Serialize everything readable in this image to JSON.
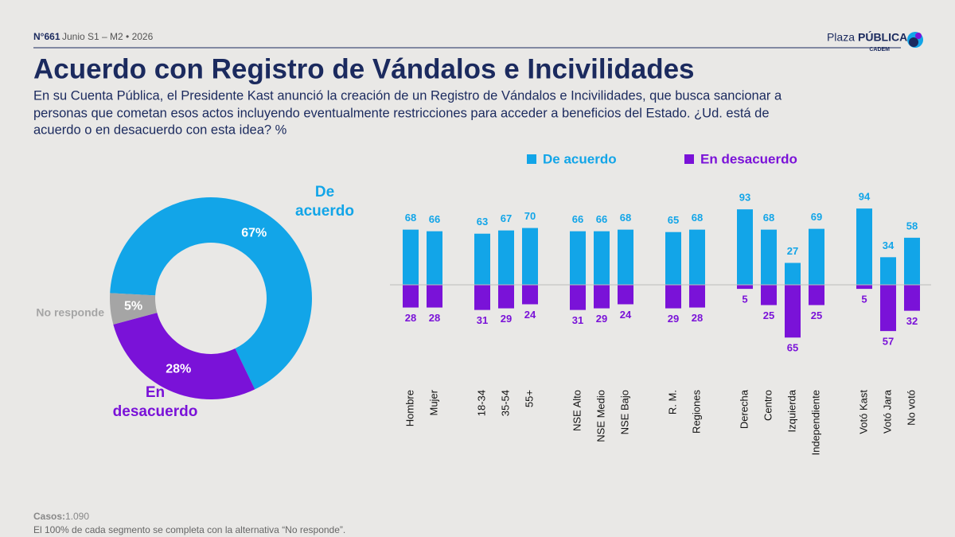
{
  "header": {
    "edition": "N°661",
    "period": "Junio S1 – M2 • 2026",
    "brand_a": "Plaza",
    "brand_b": "PÚBLICA",
    "brand_sub": "CADEM"
  },
  "title": "Acuerdo con Registro de Vándalos e Incivilidades",
  "subtitle": [
    "En su Cuenta Pública, el Presidente Kast anunció la creación de un Registro de Vándalos e Incivilidades, que busca sancionar a",
    "personas que cometan esos actos incluyendo eventualmente restricciones para acceder a beneficios del Estado. ¿Ud. está de",
    "acuerdo o en desacuerdo con esta idea? %"
  ],
  "chart_data": [
    {
      "type": "donut",
      "categories": [
        "De acuerdo",
        "En desacuerdo",
        "No responde"
      ],
      "values": [
        67,
        28,
        5
      ],
      "value_labels": [
        "67%",
        "28%",
        "5%"
      ],
      "colors": [
        "#12a5e8",
        "#7a12d8",
        "#a5a5a5"
      ]
    },
    {
      "type": "bar",
      "categories": [
        "Hombre",
        "Mujer",
        "18-34",
        "35-54",
        "55+",
        "NSE Alto",
        "NSE Medio",
        "NSE Bajo",
        "R. M.",
        "Regiones",
        "Derecha",
        "Centro",
        "Izquierda",
        "Independiente",
        "Votó Kast",
        "Votó Jara",
        "No votó"
      ],
      "series": [
        {
          "name": "De acuerdo",
          "color": "#12a5e8",
          "values": [
            68,
            66,
            63,
            67,
            70,
            66,
            66,
            68,
            65,
            68,
            93,
            68,
            27,
            69,
            94,
            34,
            58
          ]
        },
        {
          "name": "En desacuerdo",
          "color": "#7a12d8",
          "values": [
            28,
            28,
            31,
            29,
            24,
            31,
            29,
            24,
            29,
            28,
            5,
            25,
            65,
            25,
            5,
            57,
            32
          ]
        }
      ]
    }
  ],
  "footer": {
    "cases_label": "Casos:",
    "cases": "1.090",
    "note": "El 100% de cada segmento se completa con la alternativa “No responde”."
  }
}
